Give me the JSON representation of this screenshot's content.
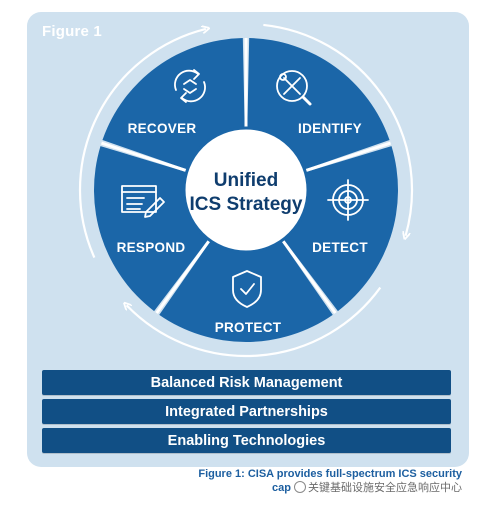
{
  "figure_label": "Figure 1",
  "center": {
    "line1": "Unified",
    "line2": "ICS Strategy"
  },
  "segments": [
    {
      "label": "IDENTIFY",
      "icon": "tools-magnifier-icon"
    },
    {
      "label": "DETECT",
      "icon": "radar-target-icon"
    },
    {
      "label": "PROTECT",
      "icon": "shield-check-icon"
    },
    {
      "label": "RESPOND",
      "icon": "document-edit-icon"
    },
    {
      "label": "RECOVER",
      "icon": "cycle-arrows-icon"
    }
  ],
  "bars": [
    {
      "label": "Balanced Risk Management"
    },
    {
      "label": "Integrated Partnerships"
    },
    {
      "label": "Enabling Technologies"
    }
  ],
  "caption": {
    "line1": "Figure 1: CISA provides full-spectrum ICS security",
    "line2_start": "cap",
    "watermark": "关键基础设施安全应急响应中心"
  },
  "colors": {
    "panel": "#cfe1ef",
    "wheel": "#1b66a8",
    "bars": "#114f85",
    "center_text": "#0f3d6e",
    "caption": "#1d5fa0"
  }
}
